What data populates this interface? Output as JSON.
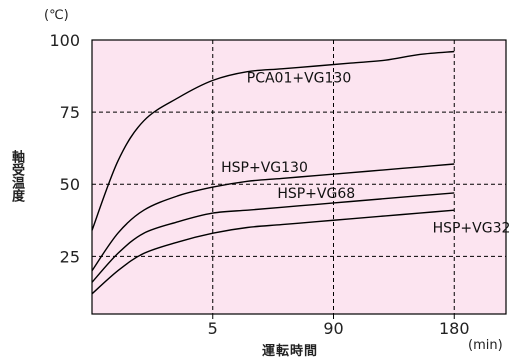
{
  "chart_data": {
    "type": "line",
    "title": "",
    "xlabel": "運転時間",
    "ylabel": "軸受温度",
    "x_unit": "(min)",
    "y_unit": "(℃)",
    "x_ticks": [
      "5",
      "90",
      "180"
    ],
    "y_ticks": [
      25,
      50,
      75,
      100
    ],
    "ylim": [
      5,
      100
    ],
    "grid": true,
    "background_color": "#fce4f0",
    "line_color": "#000000",
    "series": [
      {
        "name": "PCA01+VG130",
        "points": [
          [
            0,
            34
          ],
          [
            1.5,
            58
          ],
          [
            3,
            72
          ],
          [
            5,
            80
          ],
          [
            7,
            86
          ],
          [
            9,
            89
          ],
          [
            11,
            90
          ],
          [
            13,
            91
          ],
          [
            15,
            92
          ],
          [
            17,
            93
          ],
          [
            19,
            95
          ],
          [
            21,
            96
          ]
        ]
      },
      {
        "name": "HSP+VG130",
        "points": [
          [
            0,
            20
          ],
          [
            1.5,
            33
          ],
          [
            3,
            41
          ],
          [
            5,
            46
          ],
          [
            7,
            49
          ],
          [
            9,
            51
          ],
          [
            11,
            52
          ],
          [
            13,
            53
          ],
          [
            15,
            54
          ],
          [
            17,
            55
          ],
          [
            19,
            56
          ],
          [
            21,
            57
          ]
        ]
      },
      {
        "name": "HSP+VG68",
        "points": [
          [
            0,
            16
          ],
          [
            1.5,
            26
          ],
          [
            3,
            33
          ],
          [
            5,
            37
          ],
          [
            7,
            40
          ],
          [
            9,
            41
          ],
          [
            11,
            42
          ],
          [
            13,
            43
          ],
          [
            15,
            44
          ],
          [
            17,
            45
          ],
          [
            19,
            46
          ],
          [
            21,
            47
          ]
        ]
      },
      {
        "name": "HSP+VG32",
        "points": [
          [
            0,
            12
          ],
          [
            1.5,
            20
          ],
          [
            3,
            26
          ],
          [
            5,
            30
          ],
          [
            7,
            33
          ],
          [
            9,
            35
          ],
          [
            11,
            36
          ],
          [
            13,
            37
          ],
          [
            15,
            38
          ],
          [
            17,
            39
          ],
          [
            19,
            40
          ],
          [
            21,
            41
          ]
        ]
      }
    ]
  }
}
